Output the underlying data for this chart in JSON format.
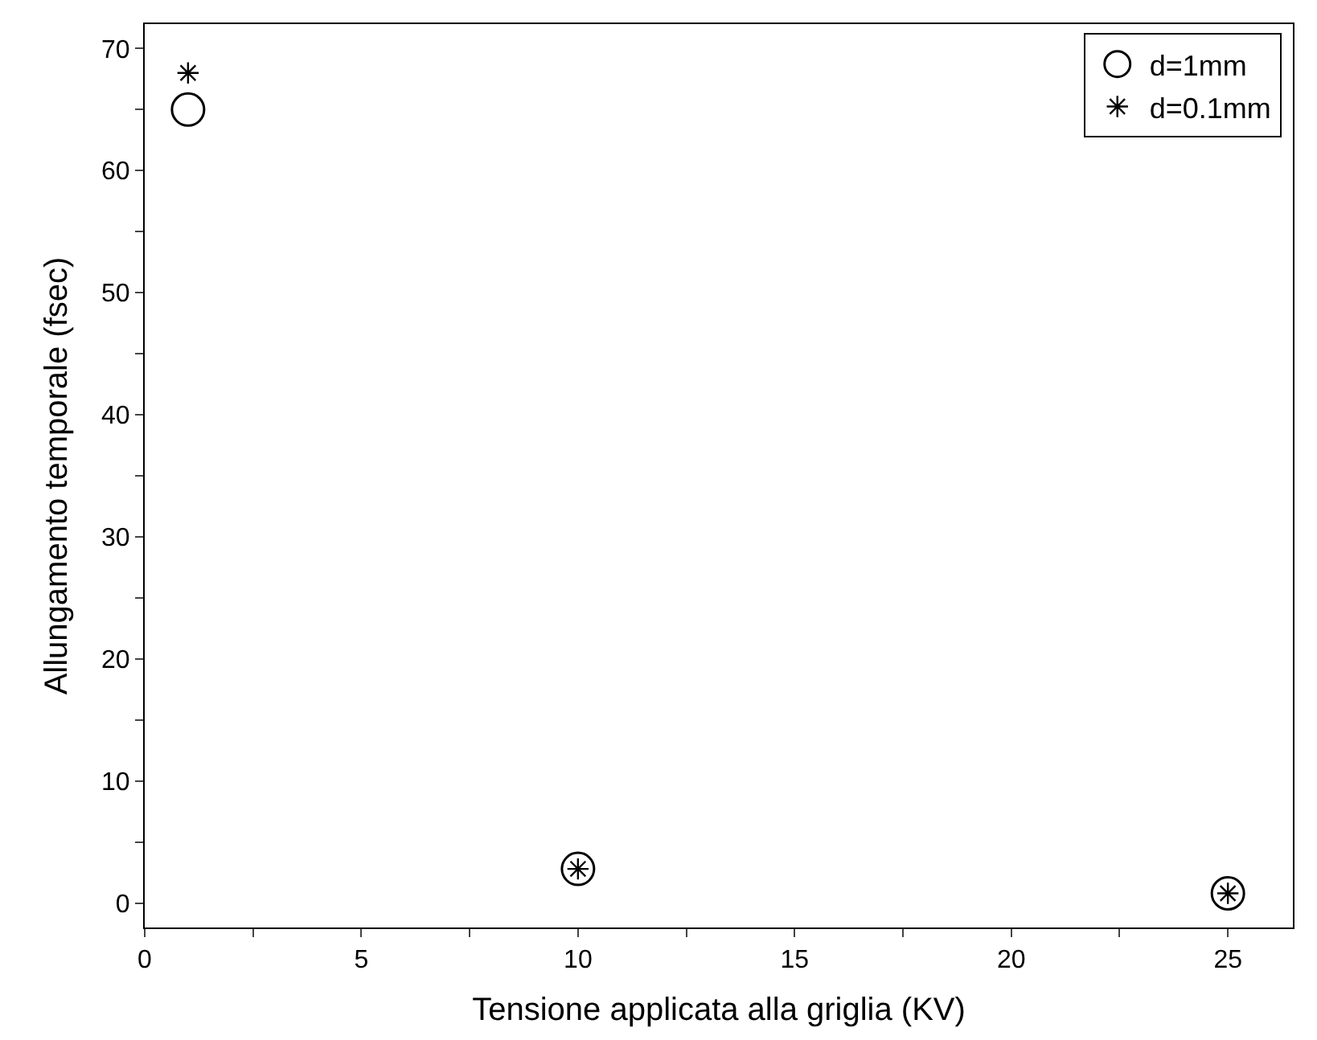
{
  "chart_data": {
    "type": "scatter",
    "xlabel": "Tensione applicata alla griglia (KV)",
    "ylabel": "Allungamento temporale (fsec)",
    "series": [
      {
        "name": "d=1mm",
        "color": "#000000",
        "marker": "circle",
        "x": [
          1,
          10,
          25
        ],
        "values": [
          65,
          2.8,
          0.8
        ]
      },
      {
        "name": "d=0.1mm",
        "color": "#000000",
        "marker": "cross",
        "x": [
          1,
          10,
          25
        ],
        "values": [
          68,
          2.8,
          0.8
        ]
      }
    ],
    "xlim": [
      0,
      26.5
    ],
    "ylim": [
      -2,
      72
    ],
    "xticks": [
      0,
      {
        "value": 2.5,
        "label": null
      },
      5,
      {
        "value": 7.5,
        "label": null
      },
      10,
      {
        "value": 12.5,
        "label": null
      },
      15,
      {
        "value": 17.5,
        "label": null
      },
      20,
      {
        "value": 22.5,
        "label": null
      },
      25
    ],
    "yticks": [
      0,
      {
        "value": 5,
        "label": null
      },
      10,
      {
        "value": 15,
        "label": null
      },
      20,
      {
        "value": 25,
        "label": null
      },
      30,
      {
        "value": 35,
        "label": null
      },
      40,
      {
        "value": 45,
        "label": null
      },
      50,
      {
        "value": 55,
        "label": null
      },
      60,
      {
        "value": 65,
        "label": null
      },
      70
    ],
    "legend": "top right"
  }
}
